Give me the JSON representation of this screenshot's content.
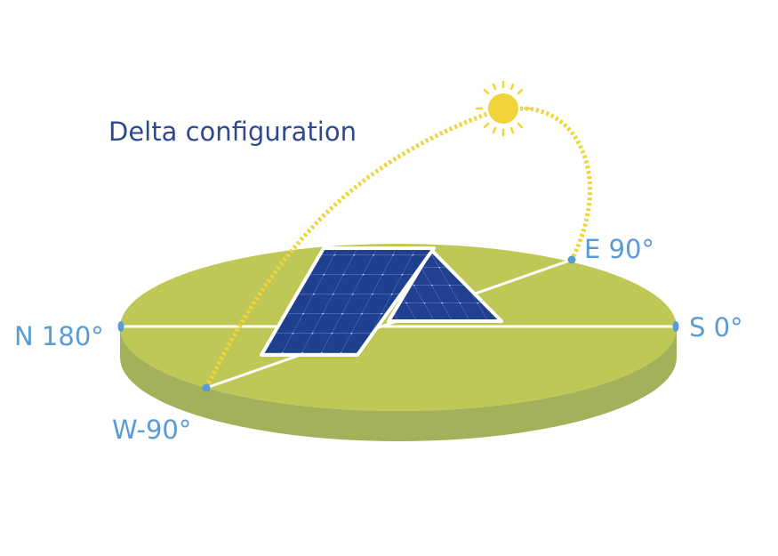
{
  "title": "Delta configuration",
  "directions": {
    "north": "N 180°",
    "south": "S 0°",
    "east": "E 90°",
    "west": "W-90°"
  },
  "colors": {
    "title": "#2e4a8e",
    "label": "#5b9bd5",
    "disc_top": "#bfc857",
    "disc_side": "#a3b15a",
    "axis_line": "#ffffff",
    "marker": "#5b9bd5",
    "sun": "#f0d43a",
    "sun_path": "#f0d43a",
    "panel_cell": "#1f3f8f",
    "panel_frame": "#ffffff"
  },
  "icons": {
    "sun": "sun-icon",
    "panel": "solar-panel-icon"
  }
}
